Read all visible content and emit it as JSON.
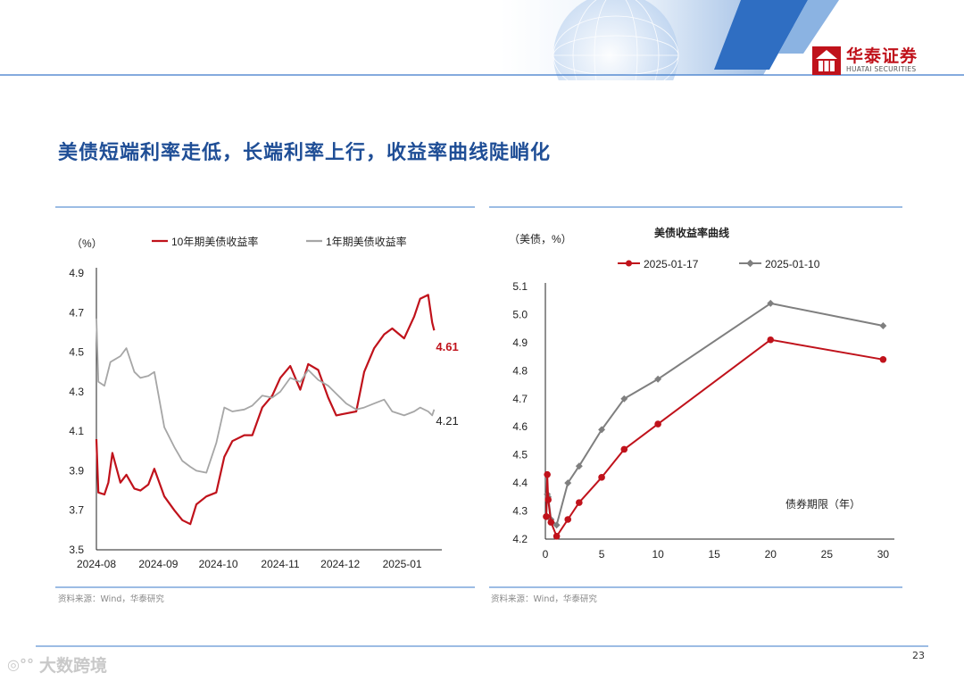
{
  "header": {
    "logo_cn": "华泰证券",
    "logo_en": "HUATAI SECURITIES"
  },
  "page_title": "美债短端利率走低，长端利率上行，收益率曲线陡峭化",
  "footer": {
    "page_number": "23",
    "watermark": "大数跨境"
  },
  "left_chart": {
    "unit_label": "（%）",
    "source": "资料来源：Wind，华泰研究",
    "chart_data": {
      "type": "line",
      "xlabel": "",
      "ylabel": "",
      "ylim": [
        3.5,
        4.9
      ],
      "yticks": [
        "4.9",
        "4.7",
        "4.5",
        "4.3",
        "4.1",
        "3.9",
        "3.7",
        "3.5"
      ],
      "x_tick_labels": [
        "2024-08",
        "2024-09",
        "2024-10",
        "2024-11",
        "2024-12",
        "2025-01"
      ],
      "series": [
        {
          "name": "10年期美债收益率",
          "color": "#c0121b",
          "end_label": "4.61",
          "x": [
            "2024-08-01",
            "2024-08-02",
            "2024-08-05",
            "2024-08-07",
            "2024-08-09",
            "2024-08-13",
            "2024-08-16",
            "2024-08-20",
            "2024-08-23",
            "2024-08-27",
            "2024-08-30",
            "2024-09-04",
            "2024-09-09",
            "2024-09-13",
            "2024-09-17",
            "2024-09-20",
            "2024-09-25",
            "2024-09-30",
            "2024-10-04",
            "2024-10-08",
            "2024-10-14",
            "2024-10-18",
            "2024-10-23",
            "2024-10-28",
            "2024-11-01",
            "2024-11-06",
            "2024-11-11",
            "2024-11-15",
            "2024-11-20",
            "2024-11-25",
            "2024-11-29",
            "2024-12-04",
            "2024-12-09",
            "2024-12-13",
            "2024-12-18",
            "2024-12-23",
            "2024-12-27",
            "2025-01-02",
            "2025-01-07",
            "2025-01-10",
            "2025-01-14",
            "2025-01-16",
            "2025-01-17"
          ],
          "y": [
            4.06,
            3.79,
            3.78,
            3.84,
            3.99,
            3.84,
            3.88,
            3.81,
            3.8,
            3.83,
            3.91,
            3.77,
            3.7,
            3.65,
            3.63,
            3.73,
            3.77,
            3.79,
            3.97,
            4.05,
            4.08,
            4.08,
            4.22,
            4.28,
            4.37,
            4.43,
            4.31,
            4.44,
            4.41,
            4.27,
            4.18,
            4.19,
            4.2,
            4.4,
            4.52,
            4.59,
            4.62,
            4.57,
            4.68,
            4.77,
            4.79,
            4.65,
            4.61
          ]
        },
        {
          "name": "1年期美债收益率",
          "color": "#a6a6a6",
          "end_label": "4.21",
          "x": [
            "2024-08-01",
            "2024-08-02",
            "2024-08-05",
            "2024-08-08",
            "2024-08-13",
            "2024-08-16",
            "2024-08-20",
            "2024-08-23",
            "2024-08-27",
            "2024-08-30",
            "2024-09-04",
            "2024-09-09",
            "2024-09-13",
            "2024-09-17",
            "2024-09-20",
            "2024-09-25",
            "2024-09-30",
            "2024-10-04",
            "2024-10-08",
            "2024-10-14",
            "2024-10-18",
            "2024-10-23",
            "2024-10-28",
            "2024-11-01",
            "2024-11-06",
            "2024-11-11",
            "2024-11-15",
            "2024-11-20",
            "2024-11-25",
            "2024-11-29",
            "2024-12-04",
            "2024-12-09",
            "2024-12-13",
            "2024-12-18",
            "2024-12-23",
            "2024-12-27",
            "2025-01-02",
            "2025-01-07",
            "2025-01-10",
            "2025-01-14",
            "2025-01-16",
            "2025-01-17"
          ],
          "y": [
            4.67,
            4.35,
            4.33,
            4.45,
            4.48,
            4.52,
            4.4,
            4.37,
            4.38,
            4.4,
            4.12,
            4.02,
            3.95,
            3.92,
            3.9,
            3.89,
            4.04,
            4.22,
            4.2,
            4.21,
            4.23,
            4.28,
            4.27,
            4.3,
            4.37,
            4.35,
            4.41,
            4.36,
            4.33,
            4.29,
            4.24,
            4.21,
            4.22,
            4.24,
            4.26,
            4.2,
            4.18,
            4.2,
            4.22,
            4.2,
            4.18,
            4.21
          ]
        }
      ]
    }
  },
  "right_chart": {
    "title": "美债收益率曲线",
    "unit_label": "（美债，%）",
    "xlabel": "债券期限（年）",
    "source": "资料来源：Wind，华泰研究",
    "chart_data": {
      "type": "line",
      "title": "美债收益率曲线",
      "xlabel": "债券期限（年）",
      "ylabel": "",
      "xlim": [
        0,
        31
      ],
      "ylim": [
        4.2,
        5.1
      ],
      "xticks": [
        "0",
        "5",
        "10",
        "15",
        "20",
        "25",
        "30"
      ],
      "yticks": [
        "5.1",
        "5.0",
        "4.9",
        "4.8",
        "4.7",
        "4.6",
        "4.5",
        "4.4",
        "4.3",
        "4.2"
      ],
      "series": [
        {
          "name": "2025-01-17",
          "color": "#c0121b",
          "x": [
            0.08,
            0.17,
            0.25,
            0.5,
            1,
            2,
            3,
            5,
            7,
            10,
            20,
            30
          ],
          "y": [
            4.28,
            4.43,
            4.34,
            4.26,
            4.21,
            4.27,
            4.33,
            4.42,
            4.52,
            4.61,
            4.91,
            4.84
          ]
        },
        {
          "name": "2025-01-10",
          "color": "#7f7f7f",
          "x": [
            0.08,
            0.17,
            0.25,
            0.5,
            1,
            2,
            3,
            5,
            7,
            10,
            20,
            30
          ],
          "y": [
            4.28,
            4.36,
            4.35,
            4.27,
            4.25,
            4.4,
            4.46,
            4.59,
            4.7,
            4.77,
            5.04,
            4.96
          ]
        }
      ]
    }
  }
}
